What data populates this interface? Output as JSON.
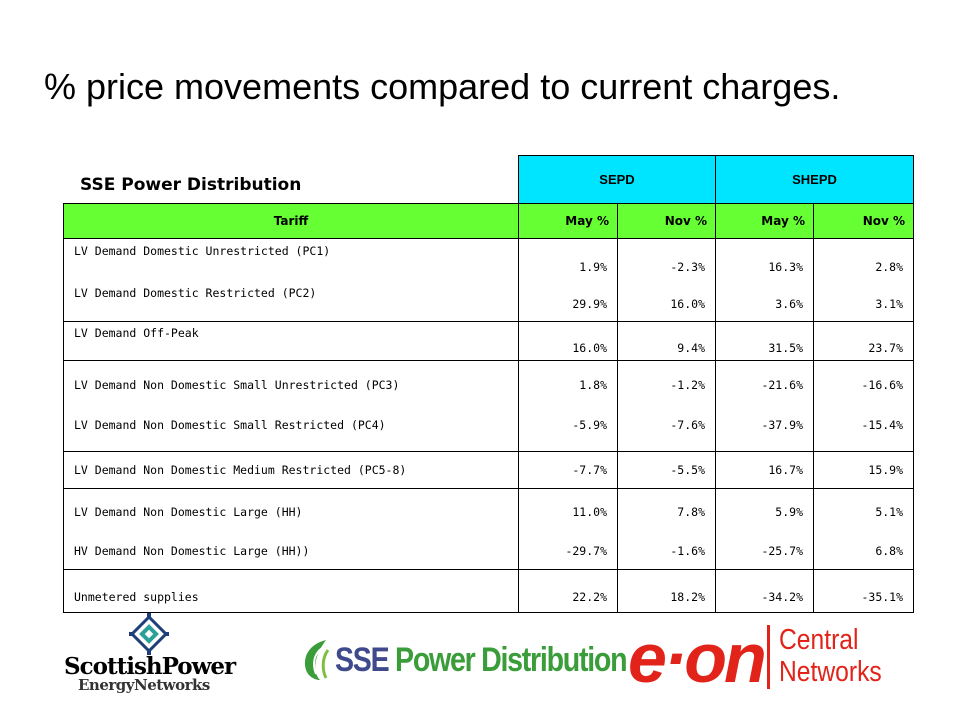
{
  "title": "% price movements compared to current charges.",
  "subtitle": "SSE Power Distribution",
  "table": {
    "group_headers": [
      "SEPD",
      "SHEPD"
    ],
    "columns": [
      "Tariff",
      "May %",
      "Nov %",
      "May %",
      "Nov %"
    ],
    "rows": [
      {
        "tariff": "LV Demand Domestic Unrestricted (PC1)",
        "values": [
          "1.9%",
          "-2.3%",
          "16.3%",
          "2.8%"
        ]
      },
      {
        "tariff": "LV Demand Domestic Restricted (PC2)",
        "values": [
          "29.9%",
          "16.0%",
          "3.6%",
          "3.1%"
        ]
      },
      {
        "tariff": "LV Demand Off-Peak",
        "values": [
          "16.0%",
          "9.4%",
          "31.5%",
          "23.7%"
        ]
      },
      {
        "tariff": "LV Demand  Non Domestic Small Unrestricted (PC3)",
        "values": [
          "1.8%",
          "-1.2%",
          "-21.6%",
          "-16.6%"
        ]
      },
      {
        "tariff": "LV Demand Non Domestic Small Restricted (PC4)",
        "values": [
          "-5.9%",
          "-7.6%",
          "-37.9%",
          "-15.4%"
        ]
      },
      {
        "tariff": "LV Demand Non Domestic Medium Restricted (PC5-8)",
        "values": [
          "-7.7%",
          "-5.5%",
          "16.7%",
          "15.9%"
        ]
      },
      {
        "tariff": "LV Demand Non Domestic Large (HH)",
        "values": [
          "11.0%",
          "7.8%",
          "5.9%",
          "5.1%"
        ]
      },
      {
        "tariff": "HV Demand Non Domestic Large (HH))",
        "values": [
          "-29.7%",
          "-1.6%",
          "-25.7%",
          "6.8%"
        ]
      },
      {
        "tariff": "Unmetered supplies",
        "values": [
          "22.2%",
          "18.2%",
          "-34.2%",
          "-35.1%"
        ]
      }
    ]
  },
  "logos": {
    "scottish_power": {
      "line1": "ScottishPower",
      "line2": "EnergyNetworks"
    },
    "sse": {
      "part1": "SSE",
      "part2": "Power Distribution"
    },
    "eon": {
      "brand": "e·on",
      "line1": "Central",
      "line2": "Networks",
      "color": "#e2231a"
    }
  },
  "colors": {
    "group_header_bg": "#00e5ff",
    "column_header_bg": "#66ff33"
  }
}
